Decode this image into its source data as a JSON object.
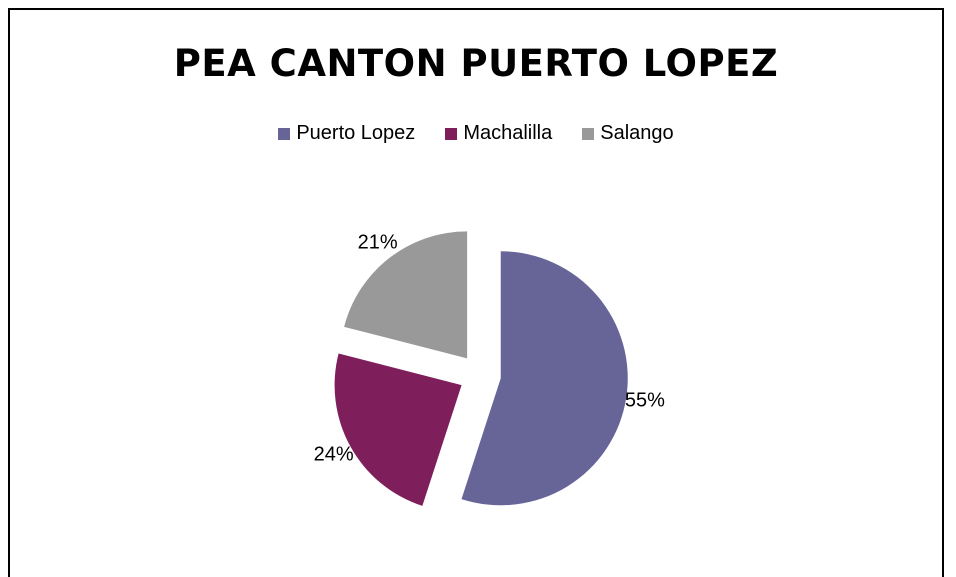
{
  "chart_data": {
    "type": "pie",
    "title": "PEA CANTON PUERTO LOPEZ",
    "categories": [
      "Puerto Lopez",
      "Machalilla",
      "Salango"
    ],
    "values": [
      55,
      24,
      21
    ],
    "value_labels": [
      "55%",
      "24%",
      "21%"
    ],
    "colors": [
      "#676598",
      "#7E1F5C",
      "#999999"
    ],
    "legend_position": "top",
    "exploded": true
  }
}
